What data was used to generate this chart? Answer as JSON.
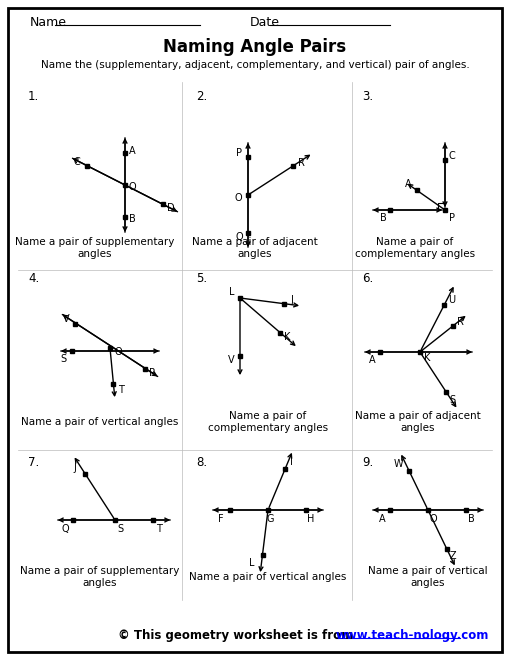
{
  "title": "Naming Angle Pairs",
  "subtitle": "Name the (supplementary, adjacent, complementary, and vertical) pair of angles.",
  "background": "#ffffff",
  "footer_text": "© This geometry worksheet is from ",
  "footer_link": "www.teach-nology.com"
}
